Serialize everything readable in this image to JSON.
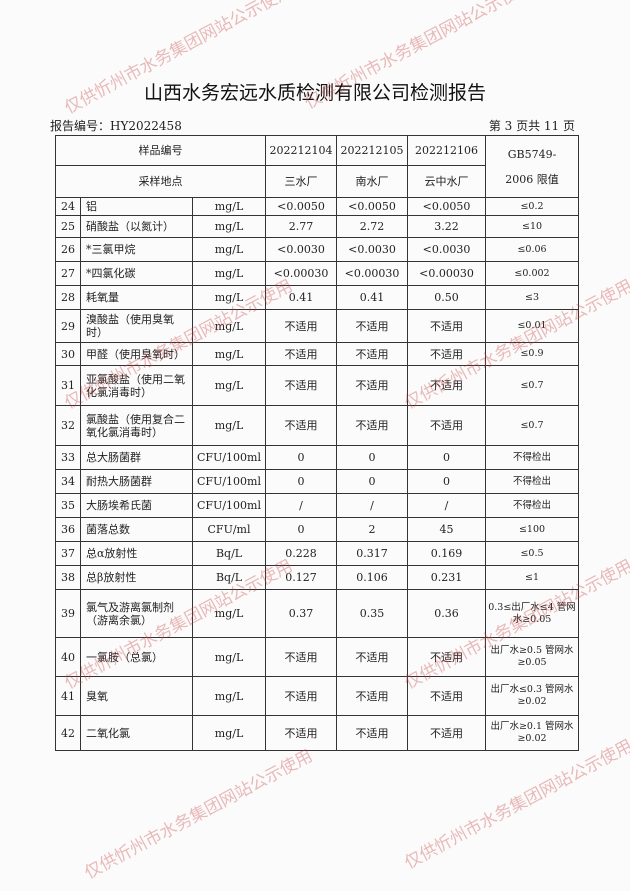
{
  "title": "山西水务宏远水质检测有限公司检测报告",
  "report_no": "报告编号：HY2022458",
  "page_no": "第 3 页共 11 页",
  "watermark": "仅供忻州市水务集团网站公示使用",
  "header": {
    "sample_no_label": "样品编号",
    "site_label": "采样地点",
    "limit_label_1": "GB5749-",
    "limit_label_2": "2006 限值",
    "samples": [
      "202212104",
      "202212105",
      "202212106"
    ],
    "sites": [
      "三水厂",
      "南水厂",
      "云中水厂"
    ]
  },
  "rows": [
    {
      "no": "24",
      "name": "铝",
      "unit": "mg/L",
      "v": [
        "<0.0050",
        "<0.0050",
        "<0.0050"
      ],
      "limit": "≤0.2",
      "h": 18
    },
    {
      "no": "25",
      "name": "硝酸盐（以氮计）",
      "unit": "mg/L",
      "v": [
        "2.77",
        "2.72",
        "3.22"
      ],
      "limit": "≤10",
      "h": 22
    },
    {
      "no": "26",
      "name": "*三氯甲烷",
      "unit": "mg/L",
      "v": [
        "<0.0030",
        "<0.0030",
        "<0.0030"
      ],
      "limit": "≤0.06",
      "h": 24
    },
    {
      "no": "27",
      "name": "*四氯化碳",
      "unit": "mg/L",
      "v": [
        "<0.00030",
        "<0.00030",
        "<0.00030"
      ],
      "limit": "≤0.002",
      "h": 24
    },
    {
      "no": "28",
      "name": "耗氧量",
      "unit": "mg/L",
      "v": [
        "0.41",
        "0.41",
        "0.50"
      ],
      "limit": "≤3",
      "h": 24
    },
    {
      "no": "29",
      "name": "溴酸盐（使用臭氧时）",
      "unit": "mg/L",
      "v": [
        "不适用",
        "不适用",
        "不适用"
      ],
      "limit": "≤0.01",
      "h": 33
    },
    {
      "no": "30",
      "name": "甲醛（使用臭氧时）",
      "unit": "mg/L",
      "v": [
        "不适用",
        "不适用",
        "不适用"
      ],
      "limit": "≤0.9",
      "h": 23
    },
    {
      "no": "31",
      "name": "亚氯酸盐（使用二氧化氯消毒时）",
      "unit": "mg/L",
      "v": [
        "不适用",
        "不适用",
        "不适用"
      ],
      "limit": "≤0.7",
      "h": 40
    },
    {
      "no": "32",
      "name": "氯酸盐（使用复合二氧化氯消毒时）",
      "unit": "mg/L",
      "v": [
        "不适用",
        "不适用",
        "不适用"
      ],
      "limit": "≤0.7",
      "h": 40
    },
    {
      "no": "33",
      "name": "总大肠菌群",
      "unit": "CFU/100ml",
      "v": [
        "0",
        "0",
        "0"
      ],
      "limit": "不得检出",
      "h": 24
    },
    {
      "no": "34",
      "name": "耐热大肠菌群",
      "unit": "CFU/100ml",
      "v": [
        "0",
        "0",
        "0"
      ],
      "limit": "不得检出",
      "h": 24
    },
    {
      "no": "35",
      "name": "大肠埃希氏菌",
      "unit": "CFU/100ml",
      "v": [
        "/",
        "/",
        "/"
      ],
      "limit": "不得检出",
      "h": 24
    },
    {
      "no": "36",
      "name": "菌落总数",
      "unit": "CFU/ml",
      "v": [
        "0",
        "2",
        "45"
      ],
      "limit": "≤100",
      "h": 24
    },
    {
      "no": "37",
      "name": "总α放射性",
      "unit": "Bq/L",
      "v": [
        "0.228",
        "0.317",
        "0.169"
      ],
      "limit": "≤0.5",
      "h": 24
    },
    {
      "no": "38",
      "name": "总β放射性",
      "unit": "Bq/L",
      "v": [
        "0.127",
        "0.106",
        "0.231"
      ],
      "limit": "≤1",
      "h": 24
    },
    {
      "no": "39",
      "name": "氯气及游离氯制剂（游离余氯）",
      "unit": "mg/L",
      "v": [
        "0.37",
        "0.35",
        "0.36"
      ],
      "limit": "0.3≤出厂水≤4 管网水≥0.05",
      "h": 48
    },
    {
      "no": "40",
      "name": "一氯胺（总氯）",
      "unit": "mg/L",
      "v": [
        "不适用",
        "不适用",
        "不适用"
      ],
      "limit": "出厂水≥0.5 管网水≥0.05",
      "h": 39
    },
    {
      "no": "41",
      "name": "臭氧",
      "unit": "mg/L",
      "v": [
        "不适用",
        "不适用",
        "不适用"
      ],
      "limit": "出厂水≤0.3 管网水≥0.02",
      "h": 39
    },
    {
      "no": "42",
      "name": "二氧化氯",
      "unit": "mg/L",
      "v": [
        "不适用",
        "不适用",
        "不适用"
      ],
      "limit": "出厂水≥0.1 管网水≥0.02",
      "h": 35
    }
  ]
}
